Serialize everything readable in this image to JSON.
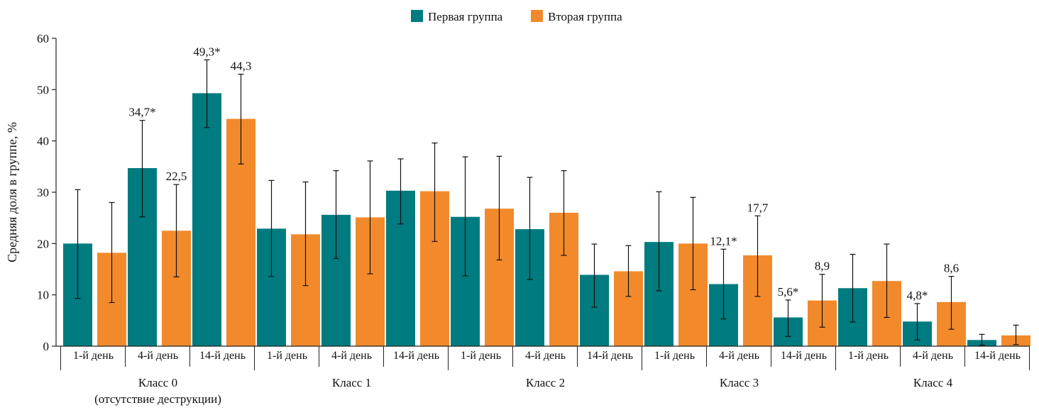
{
  "chart_data": {
    "type": "bar",
    "ylabel": "Средняя доля в группе, %",
    "ylim": [
      0,
      60
    ],
    "yticks": [
      0,
      10,
      20,
      30,
      40,
      50,
      60
    ],
    "legend_position": "top-center",
    "grid": false,
    "error_bars": true,
    "series": [
      {
        "name": "Первая группа",
        "color": "#007b7f"
      },
      {
        "name": "Вторая группа",
        "color": "#f28a2b"
      }
    ],
    "groups": [
      {
        "label": "Класс 0",
        "sublabel": "(отсутствие деструкции)",
        "days": [
          {
            "label": "1-й день",
            "values": [
              20,
              18.2
            ],
            "errors": [
              [
                9.3,
                30.5
              ],
              [
                8.5,
                28
              ]
            ],
            "labels": [
              "",
              ""
            ]
          },
          {
            "label": "4-й день",
            "values": [
              34.7,
              22.5
            ],
            "errors": [
              [
                25.2,
                44
              ],
              [
                13.5,
                31.5
              ]
            ],
            "labels": [
              "34,7*",
              "22,5"
            ]
          },
          {
            "label": "14-й день",
            "values": [
              49.3,
              44.3
            ],
            "errors": [
              [
                42.6,
                55.8
              ],
              [
                35.5,
                53
              ]
            ],
            "labels": [
              "49,3*",
              "44,3"
            ]
          }
        ]
      },
      {
        "label": "Класс 1",
        "sublabel": "",
        "days": [
          {
            "label": "1-й день",
            "values": [
              22.9,
              21.8
            ],
            "errors": [
              [
                13.6,
                32.3
              ],
              [
                11.8,
                32
              ]
            ],
            "labels": [
              "",
              ""
            ]
          },
          {
            "label": "4-й день",
            "values": [
              25.6,
              25.1
            ],
            "errors": [
              [
                17.1,
                34.2
              ],
              [
                14.1,
                36.1
              ]
            ],
            "labels": [
              "",
              ""
            ]
          },
          {
            "label": "14-й день",
            "values": [
              30.3,
              30.2
            ],
            "errors": [
              [
                23.8,
                36.5
              ],
              [
                20.4,
                39.6
              ]
            ],
            "labels": [
              "",
              ""
            ]
          }
        ]
      },
      {
        "label": "Класс 2",
        "sublabel": "",
        "days": [
          {
            "label": "1-й день",
            "values": [
              25.2,
              26.8
            ],
            "errors": [
              [
                13.7,
                36.9
              ],
              [
                16.8,
                37
              ]
            ],
            "labels": [
              "",
              ""
            ]
          },
          {
            "label": "4-й день",
            "values": [
              22.8,
              26
            ],
            "errors": [
              [
                13,
                32.9
              ],
              [
                17.7,
                34.2
              ]
            ],
            "labels": [
              "",
              ""
            ]
          },
          {
            "label": "14-й день",
            "values": [
              13.9,
              14.6
            ],
            "errors": [
              [
                7.6,
                19.9
              ],
              [
                9.7,
                19.6
              ]
            ],
            "labels": [
              "",
              ""
            ]
          }
        ]
      },
      {
        "label": "Класс 3",
        "sublabel": "",
        "days": [
          {
            "label": "1-й день",
            "values": [
              20.3,
              20
            ],
            "errors": [
              [
                10.8,
                30.1
              ],
              [
                11,
                29
              ]
            ],
            "labels": [
              "",
              ""
            ]
          },
          {
            "label": "4-й день",
            "values": [
              12.1,
              17.7
            ],
            "errors": [
              [
                5.3,
                18.9
              ],
              [
                9.7,
                25.4
              ]
            ],
            "labels": [
              "12,1*",
              "17,7"
            ]
          },
          {
            "label": "14-й день",
            "values": [
              5.6,
              8.9
            ],
            "errors": [
              [
                1.9,
                9
              ],
              [
                3.7,
                14
              ]
            ],
            "labels": [
              "5,6*",
              "8,9"
            ]
          }
        ]
      },
      {
        "label": "Класс 4",
        "sublabel": "",
        "days": [
          {
            "label": "1-й день",
            "values": [
              11.3,
              12.7
            ],
            "errors": [
              [
                4.7,
                17.9
              ],
              [
                5.6,
                19.9
              ]
            ],
            "labels": [
              "",
              ""
            ]
          },
          {
            "label": "4-й день",
            "values": [
              4.8,
              8.6
            ],
            "errors": [
              [
                1.2,
                8.3
              ],
              [
                3.3,
                13.6
              ]
            ],
            "labels": [
              "4,8*",
              "8,6"
            ]
          },
          {
            "label": "14-й день",
            "values": [
              1.2,
              2.1
            ],
            "errors": [
              [
                0.2,
                2.3
              ],
              [
                0.3,
                4.1
              ]
            ],
            "labels": [
              "",
              ""
            ]
          }
        ]
      }
    ]
  }
}
